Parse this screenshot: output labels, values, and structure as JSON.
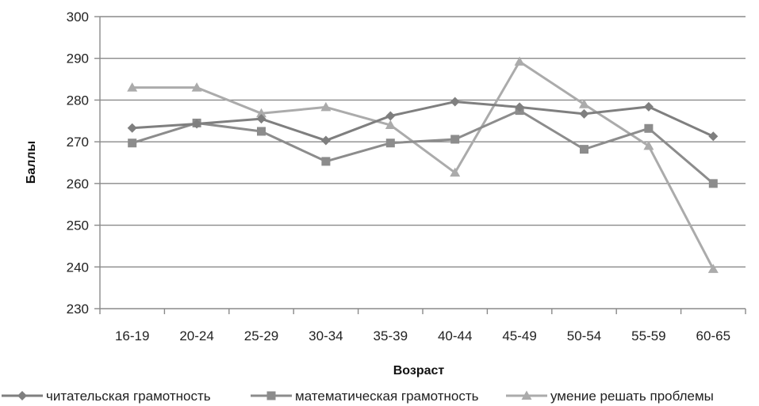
{
  "chart_data": {
    "type": "line",
    "title": "",
    "xlabel": "Возраст",
    "ylabel": "Баллы",
    "ylim": [
      230,
      300
    ],
    "yticks": [
      230,
      240,
      250,
      260,
      270,
      280,
      290,
      300
    ],
    "grid": true,
    "legend_position": "bottom",
    "categories": [
      "16-19",
      "20-24",
      "25-29",
      "30-34",
      "35-39",
      "40-44",
      "45-49",
      "50-54",
      "55-59",
      "60-65"
    ],
    "series": [
      {
        "name": "читательская грамотность",
        "color": "#7f7f7f",
        "marker": "diamond",
        "values": [
          273.3,
          274.3,
          275.5,
          270.3,
          276.2,
          279.6,
          278.3,
          276.7,
          278.4,
          271.3
        ]
      },
      {
        "name": "математическая грамотность",
        "color": "#8c8c8c",
        "marker": "square",
        "values": [
          269.7,
          274.5,
          272.5,
          265.3,
          269.7,
          270.6,
          277.5,
          268.2,
          273.2,
          260.0
        ]
      },
      {
        "name": "умение решать проблемы",
        "color": "#ababab",
        "marker": "triangle",
        "values": [
          283.0,
          283.0,
          276.8,
          278.3,
          274.0,
          262.6,
          289.2,
          279.0,
          269.0,
          239.5
        ]
      }
    ]
  }
}
